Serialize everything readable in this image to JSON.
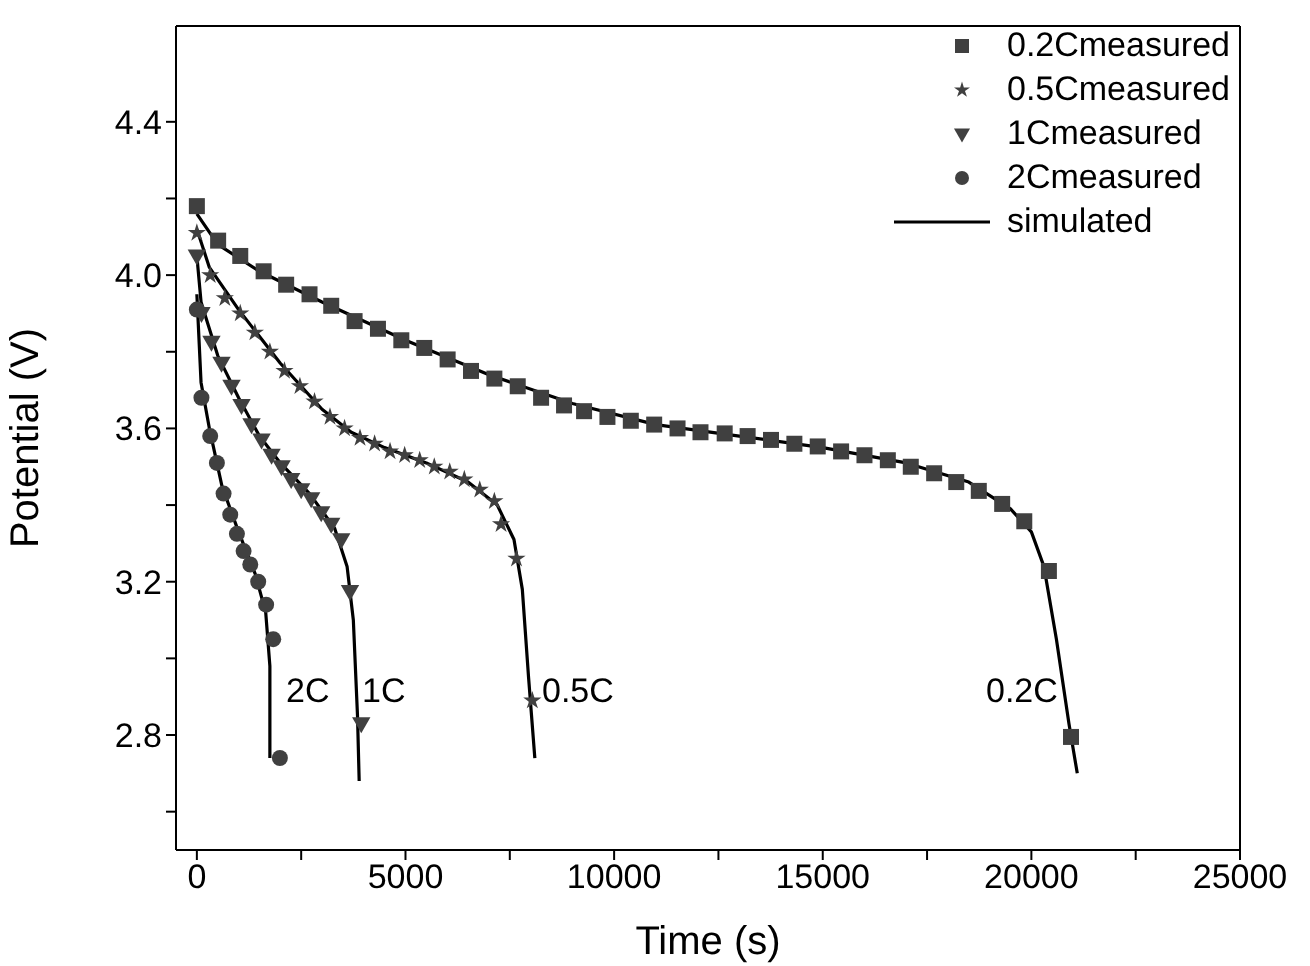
{
  "chart_data": {
    "type": "scatter",
    "xlabel": "Time (s)",
    "ylabel": "Potential (V)",
    "xlim": [
      -500,
      25000
    ],
    "xticks": [
      0,
      {
        "value": 2500,
        "label": null
      },
      5000,
      {
        "value": 7500,
        "label": null
      },
      10000,
      {
        "value": 12500,
        "label": null
      },
      15000,
      {
        "value": 17500,
        "label": null
      },
      20000,
      {
        "value": 22500,
        "label": null
      },
      25000
    ],
    "ylim": [
      2.5,
      4.65
    ],
    "yticks": [
      {
        "value": 2.6,
        "label": null
      },
      2.8,
      {
        "value": 3.0,
        "label": null
      },
      3.2,
      {
        "value": 3.4,
        "label": null
      },
      3.6,
      {
        "value": 3.8,
        "label": null
      },
      {
        "value": 4.0,
        "label": "4.0"
      },
      {
        "value": 4.2,
        "label": null
      },
      4.4
    ],
    "grid": false,
    "legend": "top right",
    "series": [
      {
        "name": "0.2Cmeasured",
        "type": "scatter",
        "marker": "square",
        "color": "#404040",
        "x": [
          0,
          510,
          1040,
          1600,
          2140,
          2700,
          3220,
          3780,
          4340,
          4900,
          5450,
          6010,
          6570,
          7130,
          7690,
          8250,
          8800,
          9280,
          9840,
          10400,
          10960,
          11520,
          12070,
          12650,
          13200,
          13760,
          14320,
          14880,
          15440,
          16000,
          16560,
          17110,
          17670,
          18200,
          18740,
          19300,
          19830,
          20420,
          20950
        ],
        "values": [
          4.18,
          4.09,
          4.05,
          4.01,
          3.975,
          3.95,
          3.92,
          3.88,
          3.86,
          3.83,
          3.81,
          3.78,
          3.75,
          3.73,
          3.71,
          3.68,
          3.66,
          3.645,
          3.63,
          3.62,
          3.61,
          3.6,
          3.59,
          3.587,
          3.58,
          3.57,
          3.56,
          3.553,
          3.54,
          3.53,
          3.517,
          3.5,
          3.483,
          3.46,
          3.437,
          3.403,
          3.358,
          3.228,
          2.795
        ]
      },
      {
        "name": "0.5Cmeasured",
        "type": "scatter",
        "marker": "star",
        "color": "#404040",
        "x": [
          0,
          320,
          670,
          1040,
          1390,
          1750,
          2100,
          2470,
          2820,
          3190,
          3540,
          3910,
          4260,
          4630,
          4980,
          5340,
          5690,
          6060,
          6410,
          6780,
          7130,
          7290,
          7660,
          8040
        ],
        "values": [
          4.11,
          4.0,
          3.94,
          3.9,
          3.85,
          3.8,
          3.75,
          3.71,
          3.67,
          3.63,
          3.6,
          3.575,
          3.56,
          3.54,
          3.53,
          3.517,
          3.5,
          3.487,
          3.467,
          3.44,
          3.41,
          3.35,
          3.26,
          2.89
        ]
      },
      {
        "name": "1Cmeasured",
        "type": "scatter",
        "marker": "triangle",
        "color": "#404040",
        "x": [
          0,
          110,
          350,
          590,
          830,
          1070,
          1310,
          1550,
          1790,
          2030,
          2260,
          2500,
          2740,
          2980,
          3220,
          3460,
          3670,
          3940
        ],
        "values": [
          4.05,
          3.9,
          3.825,
          3.77,
          3.71,
          3.66,
          3.61,
          3.57,
          3.53,
          3.5,
          3.467,
          3.44,
          3.417,
          3.38,
          3.35,
          3.31,
          3.175,
          2.83
        ]
      },
      {
        "name": "2Cmeasured",
        "type": "scatter",
        "marker": "circle",
        "color": "#404040",
        "x": [
          0,
          110,
          320,
          480,
          640,
          800,
          960,
          1120,
          1280,
          1470,
          1660,
          1830,
          1990
        ],
        "values": [
          3.91,
          3.68,
          3.58,
          3.51,
          3.43,
          3.375,
          3.325,
          3.28,
          3.245,
          3.2,
          3.14,
          3.05,
          2.74
        ]
      },
      {
        "name": "simulated",
        "type": "line",
        "marker": "none",
        "line_style": "solid",
        "color": "#000000",
        "x": [
          0,
          500,
          1500,
          3000,
          5000,
          7000,
          9000,
          11000,
          13000,
          15000,
          17000,
          18500,
          19500,
          20000,
          20300,
          20600,
          20900,
          21100
        ],
        "values": [
          4.16,
          4.08,
          4.01,
          3.93,
          3.83,
          3.74,
          3.665,
          3.61,
          3.58,
          3.55,
          3.51,
          3.46,
          3.39,
          3.33,
          3.24,
          3.05,
          2.83,
          2.7
        ]
      },
      {
        "type": "line",
        "marker": "none",
        "line_style": "solid",
        "color": "#000000",
        "x": [
          0,
          300,
          1000,
          2000,
          3000,
          3700,
          4500,
          5500,
          6500,
          7200,
          7600,
          7800,
          7950,
          8100
        ],
        "values": [
          4.12,
          4.02,
          3.91,
          3.77,
          3.65,
          3.59,
          3.55,
          3.51,
          3.46,
          3.4,
          3.31,
          3.18,
          2.95,
          2.74
        ]
      },
      {
        "type": "line",
        "marker": "none",
        "line_style": "solid",
        "color": "#000000",
        "x": [
          0,
          100,
          500,
          1000,
          1500,
          2000,
          2700,
          3300,
          3600,
          3750,
          3850,
          3890
        ],
        "values": [
          4.05,
          3.93,
          3.79,
          3.68,
          3.58,
          3.51,
          3.43,
          3.34,
          3.24,
          3.1,
          2.85,
          2.68
        ]
      },
      {
        "type": "line",
        "marker": "none",
        "line_style": "solid",
        "color": "#000000",
        "x": [
          0,
          100,
          300,
          600,
          1000,
          1400,
          1650,
          1750,
          1750
        ],
        "values": [
          3.95,
          3.72,
          3.6,
          3.45,
          3.33,
          3.22,
          3.12,
          2.98,
          2.74
        ]
      }
    ],
    "annotations": [
      "2C",
      "1C",
      "0.5C",
      "0.2C"
    ]
  }
}
